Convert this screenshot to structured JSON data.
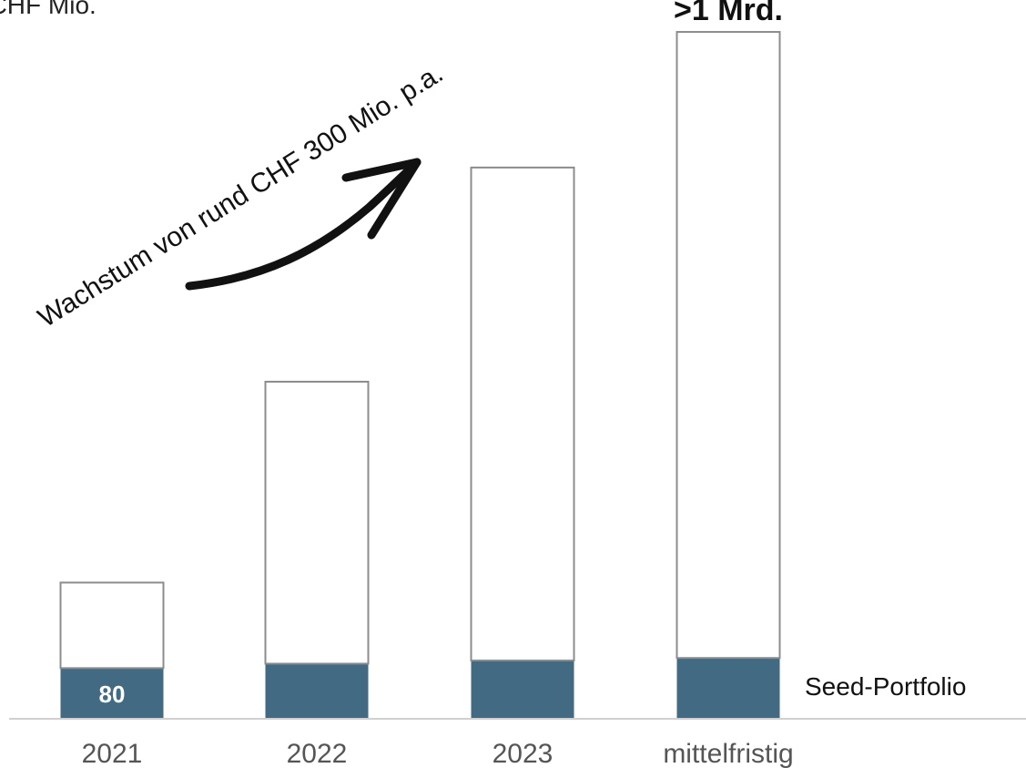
{
  "unit_label": "in CHF Mio.",
  "chart_data": {
    "type": "bar",
    "stacked": true,
    "categories": [
      "2021",
      "2022",
      "2023",
      "mittelfristig"
    ],
    "series": [
      {
        "name": "Seed-Portfolio",
        "values": [
          80,
          87,
          92,
          96
        ]
      },
      {
        "values": [
          135,
          445,
          778,
          988
        ]
      }
    ],
    "totals": [
      215,
      532,
      870,
      1084
    ],
    "data_labels": {
      "2021_seed": "80",
      "mittelfristig_total": ">1 Mrd."
    },
    "annotation": "Wachstum von rund CHF 300 Mio. p.a.",
    "ylim": [
      0,
      1120
    ],
    "colors": {
      "seed": "#426a82",
      "rest": "#ffffff",
      "outline": "#8c8c8c",
      "axis": "#d0d0d0"
    },
    "legend": "right, next to the Seed-Portfolio segment",
    "grid": false
  }
}
